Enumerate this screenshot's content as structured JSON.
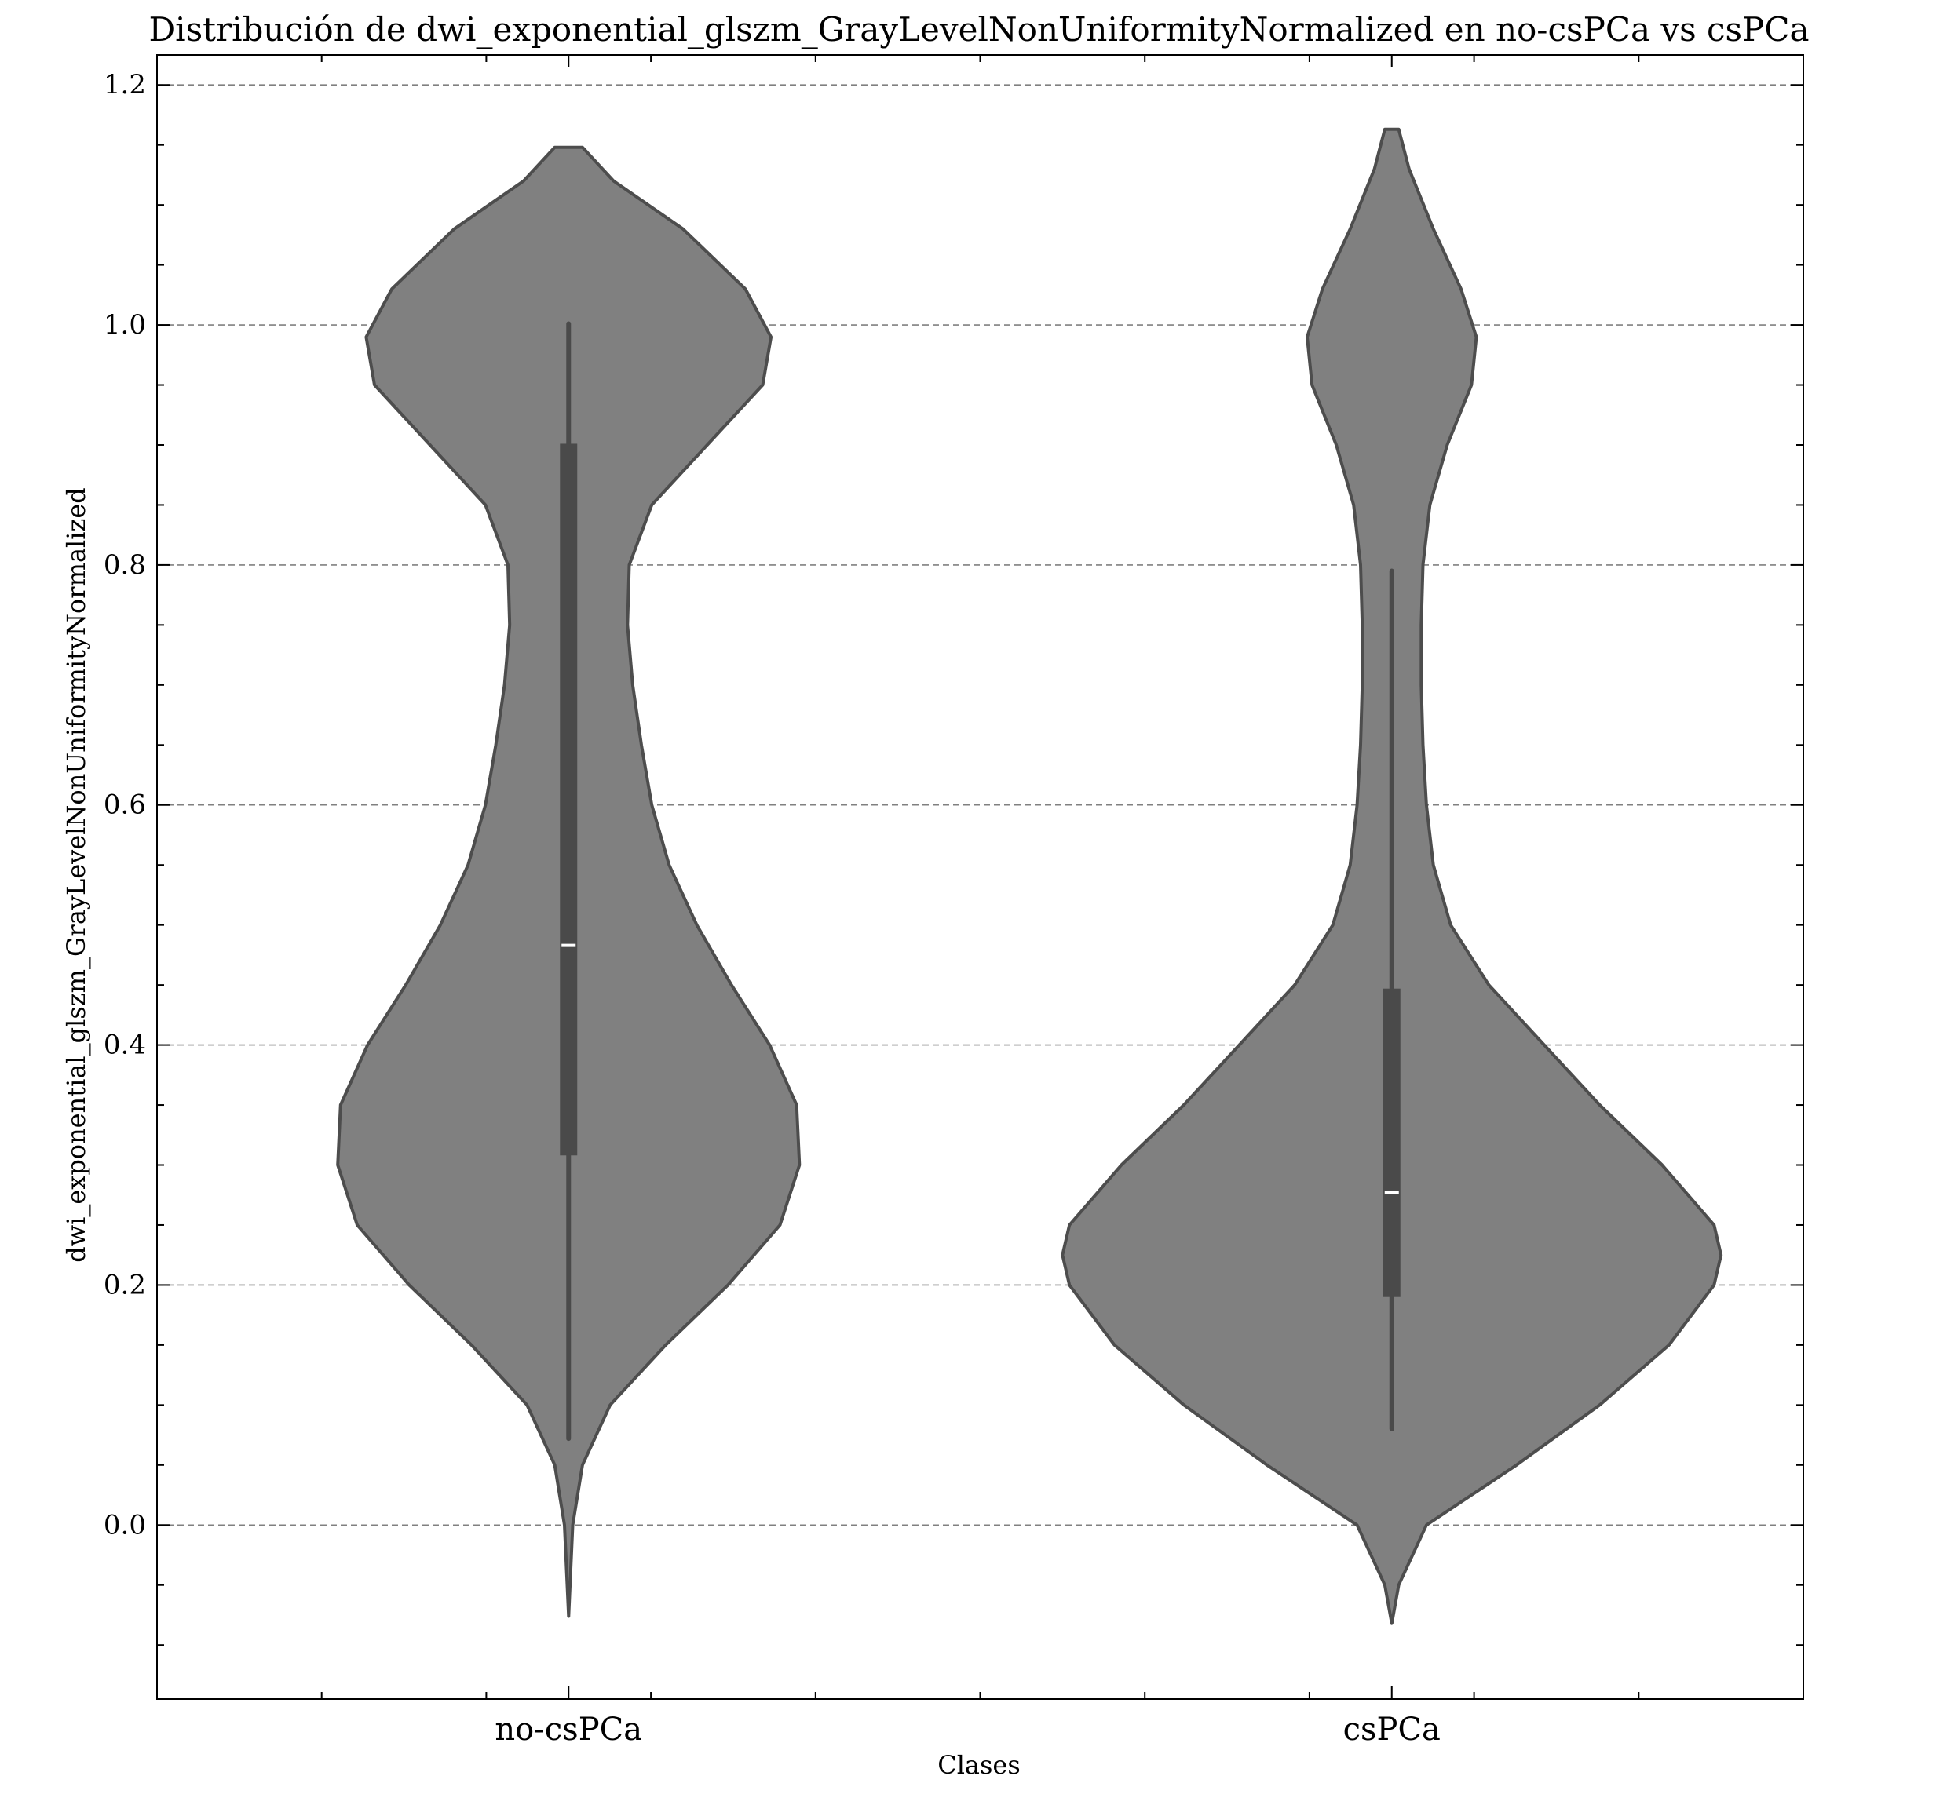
{
  "chart_data": {
    "type": "violin",
    "title": "Distribución de dwi_exponential_glszm_GrayLevelNonUniformityNormalized en no-csPCa vs csPCa",
    "xlabel": "Clases",
    "ylabel": "dwi_exponential_glszm_GrayLevelNonUniformityNormalized",
    "categories": [
      "no-csPCa",
      "csPCa"
    ],
    "ylim": [
      -0.145,
      1.225
    ],
    "yticks": [
      0.0,
      0.2,
      0.4,
      0.6,
      0.8,
      1.0,
      1.2
    ],
    "ytick_labels": [
      "0.0",
      "0.2",
      "0.4",
      "0.6",
      "0.8",
      "1.0",
      "1.2"
    ],
    "grid": "y-dashed",
    "colors": {
      "violin_fill": "#808080",
      "violin_edge": "#4d4d4d",
      "box": "#4a4a4a",
      "median": "#ffffff",
      "grid": "#808080"
    },
    "series": [
      {
        "category": "no-csPCa",
        "min": 0.072,
        "q1": 0.308,
        "median": 0.483,
        "q3": 0.901,
        "max": 1.001,
        "kde_extent": [
          -0.076,
          1.148
        ],
        "density_profile": [
          [
            -0.076,
            0.0
          ],
          [
            0.0,
            0.012
          ],
          [
            0.05,
            0.04
          ],
          [
            0.1,
            0.12
          ],
          [
            0.15,
            0.28
          ],
          [
            0.2,
            0.46
          ],
          [
            0.25,
            0.61
          ],
          [
            0.3,
            0.666
          ],
          [
            0.35,
            0.658
          ],
          [
            0.4,
            0.58
          ],
          [
            0.45,
            0.47
          ],
          [
            0.5,
            0.37
          ],
          [
            0.55,
            0.29
          ],
          [
            0.6,
            0.24
          ],
          [
            0.65,
            0.21
          ],
          [
            0.7,
            0.185
          ],
          [
            0.75,
            0.17
          ],
          [
            0.8,
            0.175
          ],
          [
            0.85,
            0.24
          ],
          [
            0.9,
            0.4
          ],
          [
            0.95,
            0.56
          ],
          [
            0.99,
            0.584
          ],
          [
            1.03,
            0.51
          ],
          [
            1.08,
            0.33
          ],
          [
            1.12,
            0.13
          ],
          [
            1.148,
            0.04
          ]
        ]
      },
      {
        "category": "csPCa",
        "min": 0.08,
        "q1": 0.19,
        "median": 0.277,
        "q3": 0.447,
        "max": 0.795,
        "kde_extent": [
          -0.082,
          1.163
        ],
        "density_profile": [
          [
            -0.082,
            0.0
          ],
          [
            -0.05,
            0.02
          ],
          [
            0.0,
            0.1
          ],
          [
            0.05,
            0.36
          ],
          [
            0.1,
            0.6
          ],
          [
            0.15,
            0.8
          ],
          [
            0.2,
            0.93
          ],
          [
            0.225,
            0.95
          ],
          [
            0.25,
            0.93
          ],
          [
            0.3,
            0.78
          ],
          [
            0.35,
            0.6
          ],
          [
            0.4,
            0.44
          ],
          [
            0.45,
            0.28
          ],
          [
            0.5,
            0.17
          ],
          [
            0.55,
            0.12
          ],
          [
            0.6,
            0.1
          ],
          [
            0.65,
            0.09
          ],
          [
            0.7,
            0.085
          ],
          [
            0.75,
            0.085
          ],
          [
            0.8,
            0.09
          ],
          [
            0.85,
            0.11
          ],
          [
            0.9,
            0.16
          ],
          [
            0.95,
            0.23
          ],
          [
            0.99,
            0.244
          ],
          [
            1.03,
            0.2
          ],
          [
            1.08,
            0.12
          ],
          [
            1.13,
            0.05
          ],
          [
            1.163,
            0.02
          ]
        ]
      }
    ]
  }
}
